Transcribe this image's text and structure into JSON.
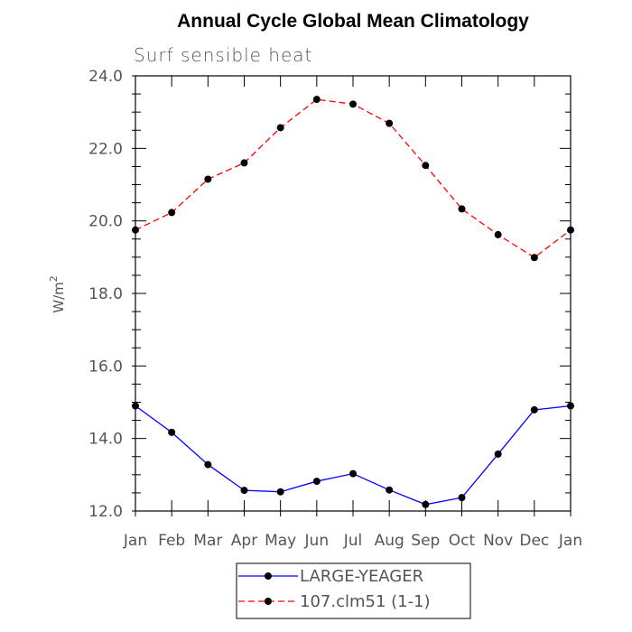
{
  "chart_data": {
    "type": "line",
    "title": "Annual Cycle Global Mean Climatology",
    "subtitle": "Surf sensible heat",
    "ylabel_base": "W/m",
    "ylabel_sup": "2",
    "xlabel": "",
    "categories": [
      "Jan",
      "Feb",
      "Mar",
      "Apr",
      "May",
      "Jun",
      "Jul",
      "Aug",
      "Sep",
      "Oct",
      "Nov",
      "Dec",
      "Jan"
    ],
    "ylim": [
      12.0,
      24.0
    ],
    "yticks": [
      "12.0",
      "14.0",
      "16.0",
      "18.0",
      "20.0",
      "22.0",
      "24.0"
    ],
    "grid": false,
    "legend_position": "bottom",
    "series": [
      {
        "name": "LARGE-YEAGER",
        "color": "#0000ff",
        "line_style": "solid",
        "marker": "filled-circle",
        "values": [
          14.9,
          14.17,
          13.28,
          12.57,
          12.53,
          12.82,
          13.03,
          12.58,
          12.18,
          12.37,
          13.57,
          14.79,
          14.9
        ]
      },
      {
        "name": "107.clm51 (1-1)",
        "color": "#ff0000",
        "line_style": "dashed",
        "marker": "filled-circle",
        "values": [
          19.75,
          20.23,
          21.15,
          21.6,
          22.57,
          23.35,
          23.22,
          22.69,
          21.53,
          20.33,
          19.62,
          18.99,
          19.75
        ]
      }
    ]
  }
}
